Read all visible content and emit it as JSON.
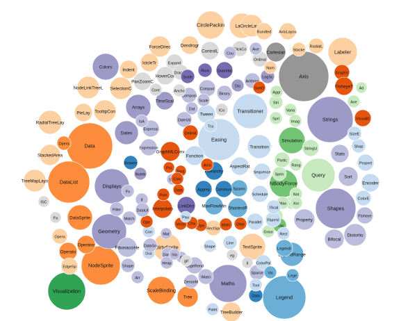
{
  "palette": {
    "light_orange": "#fdd0a2",
    "orange": "#fd8d3c",
    "dark_orange": "#e6550d",
    "light_purple": "#bcbddc",
    "purple": "#9e9ac8",
    "dark_purple": "#756bb1",
    "light_blue": "#c6dbef",
    "blue": "#6baed6",
    "dark_blue": "#3182bd",
    "light_green": "#c7e9c0",
    "green": "#74c476",
    "dark_green": "#31a354",
    "light_gray": "#d9d9d9",
    "gray": "#969696",
    "dark_gray": "#636363"
  },
  "bubbles": [
    {
      "label": "Axis",
      "value": 36,
      "color": "gray"
    },
    {
      "label": "Strings",
      "value": 33,
      "color": "purple"
    },
    {
      "label": "Data",
      "value": 33,
      "color": "orange"
    },
    {
      "label": "Easing",
      "value": 30,
      "color": "light_blue"
    },
    {
      "label": "Shapes",
      "value": 29,
      "color": "purple"
    },
    {
      "label": "DataList",
      "value": 30,
      "color": "orange"
    },
    {
      "label": "Legend",
      "value": 31,
      "color": "blue"
    },
    {
      "label": "NodeSprite",
      "value": 28,
      "color": "orange"
    },
    {
      "label": "Maths",
      "value": 27,
      "color": "purple"
    },
    {
      "label": "Geometry",
      "value": 25,
      "color": "purple"
    },
    {
      "label": "Displays",
      "value": 25,
      "color": "purple"
    },
    {
      "label": "Transitioner",
      "value": 25,
      "color": "light_blue"
    },
    {
      "label": "Query",
      "value": 24,
      "color": "light_green"
    },
    {
      "label": "Visualization",
      "value": 27,
      "color": "dark_green"
    },
    {
      "label": "Labeler",
      "value": 21,
      "color": "light_orange"
    },
    {
      "label": "CirclePackin",
      "value": 20,
      "color": "light_orange"
    },
    {
      "label": "Layout",
      "value": 18,
      "color": "light_orange"
    },
    {
      "label": "Colors",
      "value": 19,
      "color": "purple"
    },
    {
      "label": "Dates",
      "value": 17,
      "color": "purple"
    },
    {
      "label": "ScaleBinding",
      "value": 20,
      "color": "orange"
    },
    {
      "label": "Simulation",
      "value": 19,
      "color": "green"
    },
    {
      "label": "NBodyForce",
      "value": 20,
      "color": "green"
    },
    {
      "label": "DirtySprite",
      "value": 20,
      "color": "light_orange"
    },
    {
      "label": "TextSprite",
      "value": 19,
      "color": "light_orange"
    },
    {
      "label": "DataSprite",
      "value": 18,
      "color": "orange"
    },
    {
      "label": "Arrays",
      "value": 18,
      "color": "purple"
    },
    {
      "label": "TooltipCon",
      "value": 16,
      "color": "light_orange"
    },
    {
      "label": "SelectionC",
      "value": 16,
      "color": "light_orange"
    },
    {
      "label": "NodeLinkTreeL",
      "value": 16,
      "color": "light_orange"
    },
    {
      "label": "RadialTreeLay",
      "value": 17,
      "color": "light_orange"
    },
    {
      "label": "StackedArea",
      "value": 15,
      "color": "light_orange"
    },
    {
      "label": "TreeMapLayo",
      "value": 16,
      "color": "light_orange"
    },
    {
      "label": "CircleLayou",
      "value": 16,
      "color": "light_orange"
    },
    {
      "label": "ForceDirec",
      "value": 15,
      "color": "light_orange"
    },
    {
      "label": "LegendRange",
      "value": 17,
      "color": "blue"
    },
    {
      "label": "Distortio",
      "value": 16,
      "color": "light_purple"
    },
    {
      "label": "Tree",
      "value": 15,
      "color": "orange"
    },
    {
      "label": "Transition",
      "value": 17,
      "color": "light_blue"
    },
    {
      "label": "Property",
      "value": 15,
      "color": "light_purple"
    },
    {
      "label": "Sort",
      "value": 14,
      "color": "light_purple"
    },
    {
      "label": "FibonacciHe",
      "value": 14,
      "color": "light_purple"
    },
    {
      "label": "Hierarchy",
      "value": 13,
      "color": "dark_blue"
    },
    {
      "label": "ShortestP",
      "value": 14,
      "color": "blue"
    },
    {
      "label": "GraphMLConv",
      "value": 14,
      "color": "dark_orange"
    },
    {
      "label": "Interpolato",
      "value": 14,
      "color": "dark_orange"
    },
    {
      "label": "LinkDist",
      "value": 13,
      "color": "dark_purple"
    },
    {
      "label": "Tween",
      "value": 13,
      "color": "light_blue"
    },
    {
      "label": "Function",
      "value": 14,
      "color": "light_blue"
    },
    {
      "label": "AspectRat",
      "value": 13,
      "color": "light_blue"
    },
    {
      "label": "Sequence",
      "value": 12,
      "color": "light_blue"
    },
    {
      "label": "MaxFlowMin",
      "value": 13,
      "color": "blue"
    },
    {
      "label": "Spanni",
      "value": 12,
      "color": "blue"
    },
    {
      "label": "Aggreg",
      "value": 12,
      "color": "dark_blue"
    },
    {
      "label": "Communi",
      "value": 12,
      "color": "dark_blue"
    },
    {
      "label": "Parallel",
      "value": 12,
      "color": "light_blue"
    },
    {
      "label": "Schedule",
      "value": 12,
      "color": "light_blue"
    },
    {
      "label": "Filter",
      "value": 10,
      "color": "light_purple"
    },
    {
      "label": "Match",
      "value": 10,
      "color": "light_purple"
    },
    {
      "label": "Stats",
      "value": 13,
      "color": "light_purple"
    },
    {
      "label": "Bifocal",
      "value": 14,
      "color": "light_purple"
    },
    {
      "label": "Fisheye",
      "value": 12,
      "color": "light_purple"
    },
    {
      "label": "Encoder",
      "value": 13,
      "color": "light_blue"
    },
    {
      "label": "Propert",
      "value": 12,
      "color": "light_blue"
    },
    {
      "label": "ColorE",
      "value": 11,
      "color": "light_blue"
    },
    {
      "label": "Shap",
      "value": 10,
      "color": "light_blue"
    },
    {
      "label": "SizeE",
      "value": 10,
      "color": "light_blue"
    },
    {
      "label": "Dendrogr",
      "value": 13,
      "color": "light_orange"
    },
    {
      "label": "ControlL",
      "value": 13,
      "color": "light_gray"
    },
    {
      "label": "Cartesian",
      "value": 14,
      "color": "gray"
    },
    {
      "label": "Bundled",
      "value": 12,
      "color": "light_orange"
    },
    {
      "label": "AxisLayou",
      "value": 12,
      "color": "light_orange"
    },
    {
      "label": "RadialL",
      "value": 11,
      "color": "light_orange"
    },
    {
      "label": "Stacke",
      "value": 10,
      "color": "light_orange"
    },
    {
      "label": "IcicleTr",
      "value": 13,
      "color": "light_orange"
    },
    {
      "label": "PieLay",
      "value": 13,
      "color": "light_orange"
    },
    {
      "label": "Indent",
      "value": 13,
      "color": "light_orange"
    },
    {
      "label": "Expand",
      "value": 12,
      "color": "light_gray"
    },
    {
      "label": "PanZoomC",
      "value": 13,
      "color": "light_gray"
    },
    {
      "label": "HoverCon",
      "value": 13,
      "color": "light_gray"
    },
    {
      "label": "DragCo",
      "value": 11,
      "color": "light_gray"
    },
    {
      "label": "ClickCo",
      "value": 11,
      "color": "light_gray"
    },
    {
      "label": "Ordinal",
      "value": 11,
      "color": "light_gray"
    },
    {
      "label": "Quantita",
      "value": 12,
      "color": "dark_purple"
    },
    {
      "label": "Root",
      "value": 10,
      "color": "dark_purple"
    },
    {
      "label": "Scale",
      "value": 10,
      "color": "dark_purple"
    },
    {
      "label": "LogSc",
      "value": 10,
      "color": "purple"
    },
    {
      "label": "TimeScal",
      "value": 13,
      "color": "purple"
    },
    {
      "label": "Compari",
      "value": 12,
      "color": "light_purple"
    },
    {
      "label": "Composi",
      "value": 11,
      "color": "light_purple"
    },
    {
      "label": "Binary",
      "value": 11,
      "color": "light_purple"
    },
    {
      "label": "Arithme",
      "value": 11,
      "color": "light_purple"
    },
    {
      "label": "Expressi",
      "value": 12,
      "color": "light_purple"
    },
    {
      "label": "DateUti",
      "value": 11,
      "color": "light_purple"
    },
    {
      "label": "Expression",
      "value": 12,
      "color": "light_purple"
    },
    {
      "label": "Delimit",
      "value": 11,
      "color": "dark_orange"
    },
    {
      "label": "Stri",
      "value": 10,
      "color": "light_green"
    },
    {
      "label": "Varia",
      "value": 9,
      "color": "light_green"
    },
    {
      "label": "Aggr",
      "value": 9,
      "color": "light_green"
    },
    {
      "label": "StringU",
      "value": 12,
      "color": "light_green"
    },
    {
      "label": "Partic",
      "value": 11,
      "color": "light_green"
    },
    {
      "label": "Rang",
      "value": 9,
      "color": "light_green"
    },
    {
      "label": "Spri",
      "value": 9,
      "color": "light_green"
    },
    {
      "label": "Imag",
      "value": 9,
      "color": "light_green"
    },
    {
      "label": "Sprin",
      "value": 10,
      "color": "light_green"
    },
    {
      "label": "Min",
      "value": 9,
      "color": "light_green"
    },
    {
      "label": "Max",
      "value": 9,
      "color": "light_green"
    },
    {
      "label": "Not",
      "value": 9,
      "color": "light_green"
    },
    {
      "label": "Xor",
      "value": 9,
      "color": "light_green"
    },
    {
      "label": "Or",
      "value": 9,
      "color": "light_green"
    },
    {
      "label": "Drag",
      "value": 10,
      "color": "green"
    },
    {
      "label": "Gravi",
      "value": 9,
      "color": "light_green"
    },
    {
      "label": "FlareVi",
      "value": 11,
      "color": "light_blue"
    },
    {
      "label": "IScal",
      "value": 10,
      "color": "light_blue"
    },
    {
      "label": "Rect",
      "value": 9,
      "color": "light_blue"
    },
    {
      "label": "Dist",
      "value": 9,
      "color": "light_blue"
    },
    {
      "label": "Shape",
      "value": 10,
      "color": "light_purple"
    },
    {
      "label": "Arr",
      "value": 9,
      "color": "light_purple"
    },
    {
      "label": "EdgeRend",
      "value": 12,
      "color": "light_purple"
    },
    {
      "label": "DenseM",
      "value": 10,
      "color": "light_purple"
    },
    {
      "label": "IMatri",
      "value": 11,
      "color": "light_purple"
    },
    {
      "label": "Sparse",
      "value": 11,
      "color": "light_purple"
    },
    {
      "label": "ColorPal",
      "value": 11,
      "color": "light_blue"
    },
    {
      "label": "Palet",
      "value": 9,
      "color": "light_blue"
    },
    {
      "label": "TreeBuilder",
      "value": 14,
      "color": "light_orange"
    },
    {
      "label": "Data",
      "value": 10,
      "color": "dark_blue"
    },
    {
      "label": "Tool",
      "value": 9,
      "color": "light_blue"
    },
    {
      "label": "Vis",
      "value": 9,
      "color": "blue"
    },
    {
      "label": "Lege",
      "value": 9,
      "color": "blue"
    },
    {
      "label": "LegendI",
      "value": 12,
      "color": "blue"
    },
    {
      "label": "Shape",
      "value": 9,
      "color": "light_blue"
    },
    {
      "label": "Line",
      "value": 10,
      "color": "light_blue"
    },
    {
      "label": "RectSpr",
      "value": 11,
      "color": "light_orange"
    },
    {
      "label": "Ope",
      "value": 9,
      "color": "dark_orange"
    },
    {
      "label": "Cha",
      "value": 9,
      "color": "dark_orange"
    },
    {
      "label": "Vecto",
      "value": 9,
      "color": "dark_orange"
    },
    {
      "label": "Matri",
      "value": 9,
      "color": "dark_orange"
    },
    {
      "label": "Obje",
      "value": 9,
      "color": "dark_orange"
    },
    {
      "label": "Poin",
      "value": 9,
      "color": "dark_orange"
    },
    {
      "label": "Stat",
      "value": 8,
      "color": "light_purple"
    },
    {
      "label": "Poi",
      "value": 8,
      "color": "dark_orange"
    },
    {
      "label": "Rect",
      "value": 8,
      "color": "dark_orange"
    },
    {
      "label": "Date",
      "value": 8,
      "color": "dark_orange"
    },
    {
      "label": "Arra",
      "value": 9,
      "color": "dark_orange"
    },
    {
      "label": "Colo",
      "value": 9,
      "color": "dark_orange"
    },
    {
      "label": "Betwee",
      "value": 10,
      "color": "dark_blue"
    },
    {
      "label": "Numb",
      "value": 9,
      "color": "purple"
    },
    {
      "label": "Fn",
      "value": 9,
      "color": "light_purple"
    },
    {
      "label": "If",
      "value": 9,
      "color": "light_purple"
    },
    {
      "label": "IsA",
      "value": 9,
      "color": "light_purple"
    },
    {
      "label": "Dat",
      "value": 9,
      "color": "light_purple"
    },
    {
      "label": "Dis",
      "value": 9,
      "color": "purple"
    },
    {
      "label": "Cou",
      "value": 9,
      "color": "light_purple"
    },
    {
      "label": "Ave",
      "value": 9,
      "color": "light_purple"
    },
    {
      "label": "Cont",
      "value": 9,
      "color": "light_gray"
    },
    {
      "label": "Ancho",
      "value": 9,
      "color": "light_gray"
    },
    {
      "label": "ICo",
      "value": 9,
      "color": "light_gray"
    },
    {
      "label": "Scale",
      "value": 9,
      "color": "light_purple"
    },
    {
      "label": "Tra",
      "value": 9,
      "color": "light_blue"
    },
    {
      "label": "Con",
      "value": 9,
      "color": "light_blue"
    },
    {
      "label": "Pau",
      "value": 8,
      "color": "light_blue"
    },
    {
      "label": "Mat",
      "value": 8,
      "color": "light_purple"
    },
    {
      "label": "Ope",
      "value": 9,
      "color": "dark_orange"
    },
    {
      "label": "DataUt",
      "value": 10,
      "color": "light_purple"
    },
    {
      "label": "DataSo",
      "value": 10,
      "color": "light_purple"
    },
    {
      "label": "DataS",
      "value": 10,
      "color": "light_purple"
    },
    {
      "label": "Heap",
      "value": 9,
      "color": "light_purple"
    },
    {
      "label": "IE",
      "value": 8,
      "color": "light_purple"
    },
    {
      "label": "IVa",
      "value": 8,
      "color": "light_purple"
    },
    {
      "label": "gif",
      "value": 8,
      "color": "light_gray"
    },
    {
      "label": "eg",
      "value": 8,
      "color": "light_gray"
    },
    {
      "label": "ti",
      "value": 8,
      "color": "light_gray"
    },
    {
      "label": "ISC",
      "value": 8,
      "color": "light_gray"
    },
    {
      "label": "Fa",
      "value": 8,
      "color": "light_gray"
    },
    {
      "label": "Opera",
      "value": 11,
      "color": "light_orange"
    },
    {
      "label": "Operator",
      "value": 13,
      "color": "orange"
    },
    {
      "label": "Operato",
      "value": 13,
      "color": "orange"
    },
    {
      "label": "EdgeSp",
      "value": 12,
      "color": "light_orange"
    },
    {
      "label": "Opera",
      "value": 10,
      "color": "orange"
    },
    {
      "label": "SortO",
      "value": 9,
      "color": "dark_orange"
    },
    {
      "label": "Nam",
      "value": 9,
      "color": "light_orange"
    },
    {
      "label": "Ave",
      "value": 9,
      "color": "light_green"
    },
    {
      "label": "Ad",
      "value": 8,
      "color": "light_green"
    },
    {
      "label": "VisualiE",
      "value": 12,
      "color": "dark_orange"
    },
    {
      "label": "GraphV",
      "value": 11,
      "color": "dark_orange"
    },
    {
      "label": "FisheyeT",
      "value": 13,
      "color": "dark_orange"
    },
    {
      "label": "Expa",
      "value": 10,
      "color": "light_orange"
    },
    {
      "label": "Visibi",
      "value": 11,
      "color": "dark_orange"
    }
  ]
}
